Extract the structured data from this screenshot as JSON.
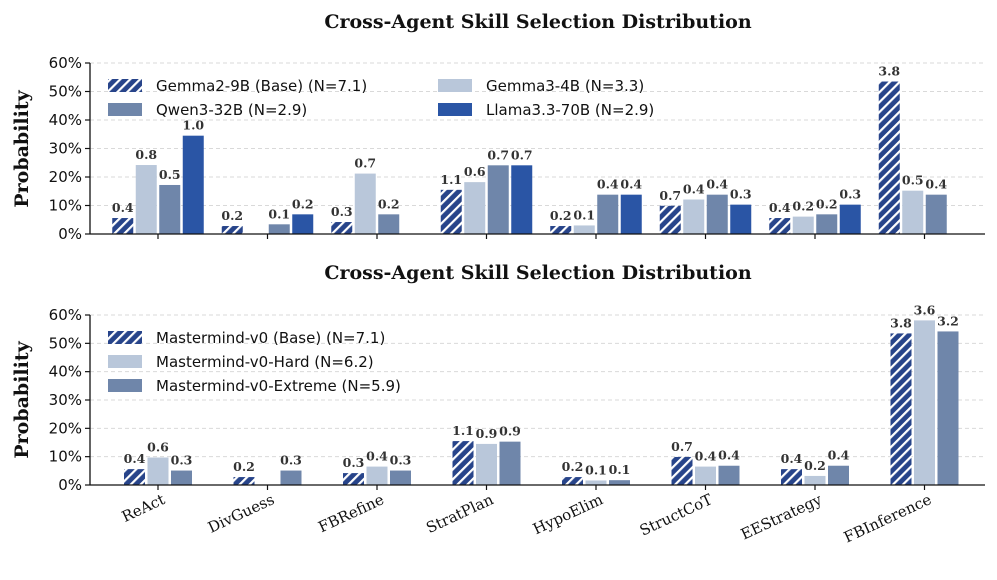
{
  "colors": {
    "navy": "#27448a",
    "light": "#b9c7da",
    "slate": "#6f86aa",
    "blue": "#2a55a5"
  },
  "chart_data": [
    {
      "type": "bar",
      "title": "Cross-Agent Skill Selection Distribution",
      "ylabel": "Probability",
      "ylim": [
        0,
        60
      ],
      "yticks": [
        "0%",
        "10%",
        "20%",
        "30%",
        "40%",
        "50%",
        "60%"
      ],
      "categories": [
        "ReAct",
        "DivGuess",
        "FBRefine",
        "StratPlan",
        "HypoElim",
        "StructCoT",
        "EEStrategy",
        "FBInference"
      ],
      "show_xticklabels": false,
      "legend_columns": 2,
      "series": [
        {
          "name": "Gemma2-9B (Base) (N=7.1)",
          "hatched": true,
          "color": "#27448a",
          "values": [
            5.6,
            2.8,
            4.2,
            15.5,
            2.8,
            9.9,
            5.6,
            53.5
          ],
          "labels": [
            "0.4",
            "0.2",
            "0.3",
            "1.1",
            "0.2",
            "0.7",
            "0.4",
            "3.8"
          ]
        },
        {
          "name": "Gemma3-4B (N=3.3)",
          "hatched": false,
          "color": "#b9c7da",
          "values": [
            24.2,
            0,
            21.2,
            18.2,
            3.0,
            12.1,
            6.1,
            15.2
          ],
          "labels": [
            "0.8",
            "",
            "0.7",
            "0.6",
            "0.1",
            "0.4",
            "0.2",
            "0.5"
          ]
        },
        {
          "name": "Qwen3-32B (N=2.9)",
          "hatched": false,
          "color": "#6f86aa",
          "values": [
            17.2,
            3.4,
            6.9,
            24.1,
            13.8,
            13.8,
            6.9,
            13.8
          ],
          "labels": [
            "0.5",
            "0.1",
            "0.2",
            "0.7",
            "0.4",
            "0.4",
            "0.2",
            "0.4"
          ]
        },
        {
          "name": "Llama3.3-70B (N=2.9)",
          "hatched": false,
          "color": "#2a55a5",
          "values": [
            34.5,
            6.9,
            0,
            24.1,
            13.8,
            10.3,
            10.3,
            0
          ],
          "labels": [
            "1.0",
            "0.2",
            "",
            "0.7",
            "0.4",
            "0.3",
            "0.3",
            ""
          ]
        }
      ]
    },
    {
      "type": "bar",
      "title": "Cross-Agent Skill Selection Distribution",
      "ylabel": "Probability",
      "ylim": [
        0,
        60
      ],
      "yticks": [
        "0%",
        "10%",
        "20%",
        "30%",
        "40%",
        "50%",
        "60%"
      ],
      "categories": [
        "ReAct",
        "DivGuess",
        "FBRefine",
        "StratPlan",
        "HypoElim",
        "StructCoT",
        "EEStrategy",
        "FBInference"
      ],
      "show_xticklabels": true,
      "legend_columns": 1,
      "series": [
        {
          "name": "Mastermind-v0 (Base) (N=7.1)",
          "hatched": true,
          "color": "#27448a",
          "values": [
            5.6,
            2.8,
            4.2,
            15.5,
            2.8,
            9.9,
            5.6,
            53.5
          ],
          "labels": [
            "0.4",
            "0.2",
            "0.3",
            "1.1",
            "0.2",
            "0.7",
            "0.4",
            "3.8"
          ]
        },
        {
          "name": "Mastermind-v0-Hard (N=6.2)",
          "hatched": false,
          "color": "#b9c7da",
          "values": [
            9.7,
            0,
            6.5,
            14.5,
            1.6,
            6.5,
            3.2,
            58.1
          ],
          "labels": [
            "0.6",
            "",
            "0.4",
            "0.9",
            "0.1",
            "0.4",
            "0.2",
            "3.6"
          ]
        },
        {
          "name": "Mastermind-v0-Extreme (N=5.9)",
          "hatched": false,
          "color": "#6f86aa",
          "values": [
            5.1,
            5.1,
            5.1,
            15.3,
            1.7,
            6.8,
            6.8,
            54.2
          ],
          "labels": [
            "0.3",
            "0.3",
            "0.3",
            "0.9",
            "0.1",
            "0.4",
            "0.4",
            "3.2"
          ]
        }
      ]
    }
  ]
}
